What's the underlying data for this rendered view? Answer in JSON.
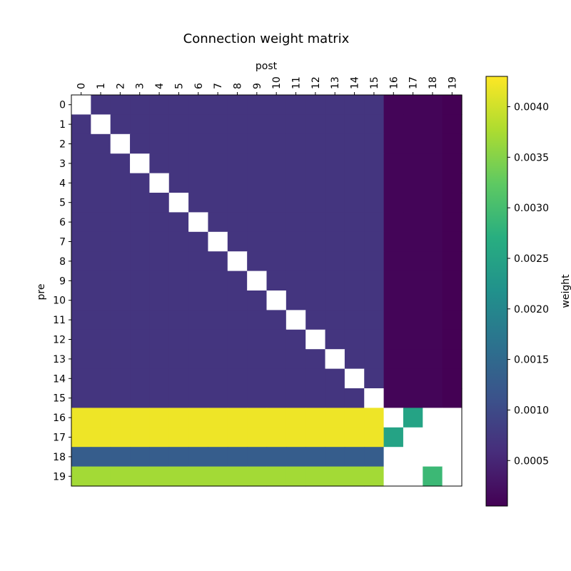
{
  "chart_data": {
    "type": "heatmap",
    "title": "Connection weight matrix",
    "xlabel": "post",
    "ylabel": "pre",
    "colorbar_label": "weight",
    "x_ticks": [
      "0",
      "1",
      "2",
      "3",
      "4",
      "5",
      "6",
      "7",
      "8",
      "9",
      "10",
      "11",
      "12",
      "13",
      "14",
      "15",
      "16",
      "17",
      "18",
      "19"
    ],
    "y_ticks": [
      "0",
      "1",
      "2",
      "3",
      "4",
      "5",
      "6",
      "7",
      "8",
      "9",
      "10",
      "11",
      "12",
      "13",
      "14",
      "15",
      "16",
      "17",
      "18",
      "19"
    ],
    "colorbar_ticks": [
      "0.0005",
      "0.0010",
      "0.0015",
      "0.0020",
      "0.0025",
      "0.0030",
      "0.0035",
      "0.0040"
    ],
    "colorbar_tick_values": [
      0.0005,
      0.001,
      0.0015,
      0.002,
      0.0025,
      0.003,
      0.0035,
      0.004
    ],
    "colorscale": "viridis",
    "vmin": 5e-05,
    "vmax": 0.0043,
    "missing_color": "#ffffff",
    "matrix": [
      [
        null,
        0.0007,
        0.0007,
        0.0007,
        0.0007,
        0.0007,
        0.0007,
        0.0007,
        0.0007,
        0.0007,
        0.0007,
        0.0007,
        0.0007,
        0.0007,
        0.0007,
        0.0007,
        0.0001,
        0.0001,
        0.0001,
        5e-05
      ],
      [
        0.0007,
        null,
        0.0007,
        0.0007,
        0.0007,
        0.0007,
        0.0007,
        0.0007,
        0.0007,
        0.0007,
        0.0007,
        0.0007,
        0.0007,
        0.0007,
        0.0007,
        0.0007,
        0.0001,
        0.0001,
        0.0001,
        5e-05
      ],
      [
        0.0007,
        0.0007,
        null,
        0.0007,
        0.0007,
        0.0007,
        0.0007,
        0.0007,
        0.0007,
        0.0007,
        0.0007,
        0.0007,
        0.0007,
        0.0007,
        0.0007,
        0.0007,
        0.0001,
        0.0001,
        0.0001,
        5e-05
      ],
      [
        0.0007,
        0.0007,
        0.0007,
        null,
        0.0007,
        0.0007,
        0.0007,
        0.0007,
        0.0007,
        0.0007,
        0.0007,
        0.0007,
        0.0007,
        0.0007,
        0.0007,
        0.0007,
        0.0001,
        0.0001,
        0.0001,
        5e-05
      ],
      [
        0.0007,
        0.0007,
        0.0007,
        0.0007,
        null,
        0.0007,
        0.0007,
        0.0007,
        0.0007,
        0.0007,
        0.0007,
        0.0007,
        0.0007,
        0.0007,
        0.0007,
        0.0007,
        0.0001,
        0.0001,
        0.0001,
        5e-05
      ],
      [
        0.0007,
        0.0007,
        0.0007,
        0.0007,
        0.0007,
        null,
        0.0007,
        0.0007,
        0.0007,
        0.0007,
        0.0007,
        0.0007,
        0.0007,
        0.0007,
        0.0007,
        0.0007,
        0.0001,
        0.0001,
        0.0001,
        5e-05
      ],
      [
        0.0007,
        0.0007,
        0.0007,
        0.0007,
        0.0007,
        0.0007,
        null,
        0.0007,
        0.0007,
        0.0007,
        0.0007,
        0.0007,
        0.0007,
        0.0007,
        0.0007,
        0.0007,
        0.0001,
        0.0001,
        0.0001,
        5e-05
      ],
      [
        0.0007,
        0.0007,
        0.0007,
        0.0007,
        0.0007,
        0.0007,
        0.0007,
        null,
        0.0007,
        0.0007,
        0.0007,
        0.0007,
        0.0007,
        0.0007,
        0.0007,
        0.0007,
        0.0001,
        0.0001,
        0.0001,
        5e-05
      ],
      [
        0.0007,
        0.0007,
        0.0007,
        0.0007,
        0.0007,
        0.0007,
        0.0007,
        0.0007,
        null,
        0.0007,
        0.0007,
        0.0007,
        0.0007,
        0.0007,
        0.0007,
        0.0007,
        0.0001,
        0.0001,
        0.0001,
        5e-05
      ],
      [
        0.0007,
        0.0007,
        0.0007,
        0.0007,
        0.0007,
        0.0007,
        0.0007,
        0.0007,
        0.0007,
        null,
        0.0007,
        0.0007,
        0.0007,
        0.0007,
        0.0007,
        0.0007,
        0.0001,
        0.0001,
        0.0001,
        5e-05
      ],
      [
        0.0007,
        0.0007,
        0.0007,
        0.0007,
        0.0007,
        0.0007,
        0.0007,
        0.0007,
        0.0007,
        0.0007,
        null,
        0.0007,
        0.0007,
        0.0007,
        0.0007,
        0.0007,
        0.0001,
        0.0001,
        0.0001,
        5e-05
      ],
      [
        0.0007,
        0.0007,
        0.0007,
        0.0007,
        0.0007,
        0.0007,
        0.0007,
        0.0007,
        0.0007,
        0.0007,
        0.0007,
        null,
        0.0007,
        0.0007,
        0.0007,
        0.0007,
        0.0001,
        0.0001,
        0.0001,
        5e-05
      ],
      [
        0.0007,
        0.0007,
        0.0007,
        0.0007,
        0.0007,
        0.0007,
        0.0007,
        0.0007,
        0.0007,
        0.0007,
        0.0007,
        0.0007,
        null,
        0.0007,
        0.0007,
        0.0007,
        0.0001,
        0.0001,
        0.0001,
        5e-05
      ],
      [
        0.0007,
        0.0007,
        0.0007,
        0.0007,
        0.0007,
        0.0007,
        0.0007,
        0.0007,
        0.0007,
        0.0007,
        0.0007,
        0.0007,
        0.0007,
        null,
        0.0007,
        0.0007,
        0.0001,
        0.0001,
        0.0001,
        5e-05
      ],
      [
        0.0007,
        0.0007,
        0.0007,
        0.0007,
        0.0007,
        0.0007,
        0.0007,
        0.0007,
        0.0007,
        0.0007,
        0.0007,
        0.0007,
        0.0007,
        0.0007,
        null,
        0.0007,
        0.0001,
        0.0001,
        0.0001,
        5e-05
      ],
      [
        0.0007,
        0.0007,
        0.0007,
        0.0007,
        0.0007,
        0.0007,
        0.0007,
        0.0007,
        0.0007,
        0.0007,
        0.0007,
        0.0007,
        0.0007,
        0.0007,
        0.0007,
        null,
        0.0001,
        0.0001,
        0.0001,
        5e-05
      ],
      [
        0.0042,
        0.0042,
        0.0042,
        0.0042,
        0.0042,
        0.0042,
        0.0042,
        0.0042,
        0.0042,
        0.0042,
        0.0042,
        0.0042,
        0.0042,
        0.0042,
        0.0042,
        0.0042,
        null,
        0.0025,
        null,
        null
      ],
      [
        0.0042,
        0.0042,
        0.0042,
        0.0042,
        0.0042,
        0.0042,
        0.0042,
        0.0042,
        0.0042,
        0.0042,
        0.0042,
        0.0042,
        0.0042,
        0.0042,
        0.0042,
        0.0042,
        0.0025,
        null,
        null,
        null
      ],
      [
        0.0013,
        0.0013,
        0.0013,
        0.0013,
        0.0013,
        0.0013,
        0.0013,
        0.0013,
        0.0013,
        0.0013,
        0.0013,
        0.0013,
        0.0013,
        0.0013,
        0.0013,
        0.0013,
        null,
        null,
        null,
        null
      ],
      [
        0.0037,
        0.0037,
        0.0037,
        0.0037,
        0.0037,
        0.0037,
        0.0037,
        0.0037,
        0.0037,
        0.0037,
        0.0037,
        0.0037,
        0.0037,
        0.0037,
        0.0037,
        0.0037,
        null,
        null,
        0.0029,
        null
      ]
    ]
  }
}
